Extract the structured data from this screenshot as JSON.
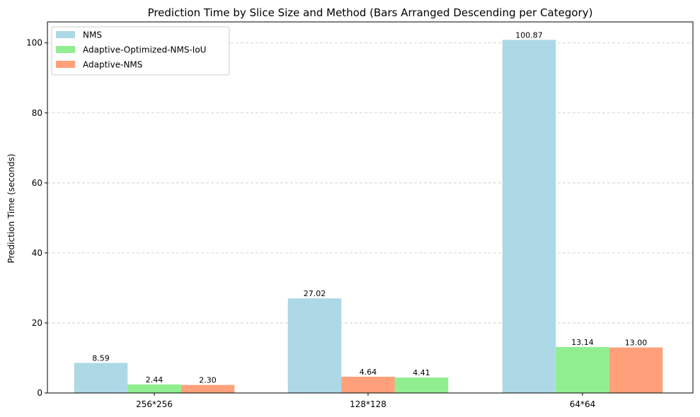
{
  "chart_data": {
    "type": "bar",
    "title": "Prediction Time by Slice Size and Method (Bars Arranged Descending per Category)",
    "xlabel": "",
    "ylabel": "Prediction Time (seconds)",
    "ylim": [
      0,
      106
    ],
    "yticks": [
      0,
      20,
      40,
      60,
      80,
      100
    ],
    "grid": "y-dashed",
    "legend_position": "top-left",
    "categories": [
      "256*256",
      "128*128",
      "64*64"
    ],
    "series": [
      {
        "name": "NMS",
        "color": "#add8e6"
      },
      {
        "name": "Adaptive-Optimized-NMS-IoU",
        "color": "#90ee90"
      },
      {
        "name": "Adaptive-NMS",
        "color": "#ffa07a"
      }
    ],
    "groups": [
      {
        "category": "256*256",
        "bars": [
          {
            "series": "NMS",
            "value": 8.59,
            "label": "8.59"
          },
          {
            "series": "Adaptive-Optimized-NMS-IoU",
            "value": 2.44,
            "label": "2.44"
          },
          {
            "series": "Adaptive-NMS",
            "value": 2.3,
            "label": "2.30"
          }
        ]
      },
      {
        "category": "128*128",
        "bars": [
          {
            "series": "NMS",
            "value": 27.02,
            "label": "27.02"
          },
          {
            "series": "Adaptive-NMS",
            "value": 4.64,
            "label": "4.64"
          },
          {
            "series": "Adaptive-Optimized-NMS-IoU",
            "value": 4.41,
            "label": "4.41"
          }
        ]
      },
      {
        "category": "64*64",
        "bars": [
          {
            "series": "NMS",
            "value": 100.87,
            "label": "100.87"
          },
          {
            "series": "Adaptive-Optimized-NMS-IoU",
            "value": 13.14,
            "label": "13.14"
          },
          {
            "series": "Adaptive-NMS",
            "value": 13.0,
            "label": "13.00"
          }
        ]
      }
    ]
  }
}
